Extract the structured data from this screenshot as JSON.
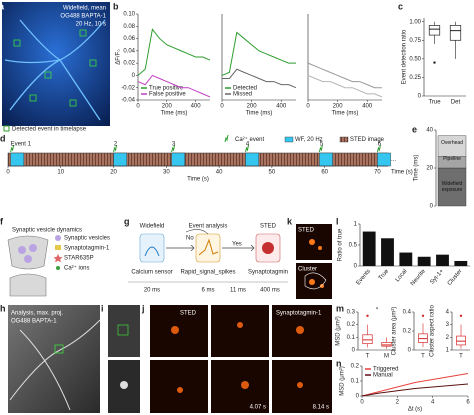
{
  "figure": {
    "a": {
      "label": "a",
      "lines": [
        "Widefield, mean",
        "OG488 BAPTA-1",
        "20 Hz, 10 s"
      ],
      "legend": "Detected event in timelapse"
    },
    "f": {
      "label": "f",
      "title": "Synaptic vesicle dynamics",
      "legend": [
        "Synaptic vesicles",
        "Synaptotagmin-1",
        "STAR635P",
        "Ca²⁺ ions"
      ]
    },
    "g": {
      "label": "g",
      "steps": [
        {
          "title": "Widefield",
          "desc": "Calcium sensor",
          "time": "20 ms"
        },
        {
          "title": "Event analysis",
          "desc": "Rapid_signal_spikes",
          "time": "6 ms"
        },
        {
          "title": "STED",
          "desc": "Synaptotagmin",
          "time": "400 ms"
        }
      ],
      "no": "No",
      "yes": "Yes",
      "gap": "11 ms"
    },
    "h": {
      "label": "h",
      "lines": [
        "Analysis, max. proj.",
        "OG488 BAPTA-1"
      ]
    },
    "i": {
      "label": "i"
    },
    "j": {
      "label": "j",
      "titles": [
        "STED",
        "Synaptotagmin-1"
      ],
      "times": [
        "4.07 s",
        "8.14 s"
      ]
    },
    "k": {
      "label": "k",
      "titles": [
        "STED",
        "Cluster"
      ]
    }
  },
  "chart_data": [
    {
      "type": "line",
      "panel": "b",
      "ylabel": "ΔF/F₀",
      "xlabel": "Time (ms)",
      "x": [
        0,
        50,
        100,
        150,
        200,
        250,
        300,
        350,
        400,
        450,
        500
      ],
      "xlim": [
        0,
        500
      ],
      "xticks": [
        0,
        200,
        400
      ],
      "ylim": [
        -0.04,
        0.1
      ],
      "yticks": [
        -0.04,
        -0.02,
        0,
        0.02,
        0.04,
        0.06,
        0.08,
        {
          "value": 0.1,
          "label": "0.10"
        }
      ],
      "series": [
        {
          "name": "True positive",
          "color": "#2e9e2e",
          "values": [
            0.0,
            0.01,
            0.075,
            0.06,
            0.05,
            0.045,
            0.04,
            0.035,
            0.03,
            0.03,
            0.025
          ]
        },
        {
          "name": "False positive",
          "color": "#c23fc2",
          "values": [
            -0.01,
            -0.015,
            0.0,
            -0.005,
            -0.01,
            -0.015,
            -0.02,
            -0.02,
            -0.025,
            -0.03,
            -0.035
          ]
        }
      ]
    },
    {
      "type": "line",
      "xlabel": "Time (ms)",
      "x": [
        0,
        50,
        100,
        150,
        200,
        250,
        300,
        350,
        400,
        450,
        500
      ],
      "xlim": [
        0,
        500
      ],
      "xticks": [
        0,
        200,
        400
      ],
      "ylim": [
        -0.04,
        0.1
      ],
      "series": [
        {
          "name": "Detected",
          "color": "#2e9e2e",
          "values": [
            0.0,
            0.005,
            0.07,
            0.06,
            0.05,
            0.04,
            0.035,
            0.03,
            0.025,
            0.02,
            0.02
          ]
        },
        {
          "name": "Missed",
          "color": "#666666",
          "values": [
            -0.005,
            -0.005,
            0.01,
            0.005,
            0.0,
            -0.005,
            -0.01,
            -0.01,
            -0.015,
            -0.015,
            -0.02
          ]
        }
      ]
    },
    {
      "type": "line",
      "xlabel": "Time (ms)",
      "x": [
        0,
        50,
        100,
        150,
        200,
        250,
        300,
        350,
        400,
        450,
        500
      ],
      "xlim": [
        0,
        500
      ],
      "xticks": [
        0,
        200,
        400
      ],
      "ylim": [
        -0.04,
        0.1
      ],
      "series": [
        {
          "color": "#9a9a9a",
          "values": [
            0.02,
            0.015,
            0.01,
            0.005,
            0.0,
            -0.005,
            -0.01,
            -0.01,
            -0.015,
            -0.02,
            -0.02
          ]
        },
        {
          "color": "#b5b5b5",
          "values": [
            0.0,
            -0.005,
            -0.01,
            -0.01,
            -0.015,
            -0.02,
            -0.02,
            -0.025,
            -0.03,
            -0.03,
            -0.035
          ]
        }
      ]
    },
    {
      "type": "box",
      "panel": "c",
      "ylabel": "Event detection ratio",
      "categories": [
        "True",
        "Det"
      ],
      "color": "#222222",
      "ylim": [
        0,
        1.05
      ],
      "yticks": [
        0,
        0.25,
        {
          "value": 0.5,
          "label": "0.50"
        },
        0.75,
        {
          "value": 1,
          "label": "1.00"
        }
      ],
      "stats": [
        {
          "low": 0.7,
          "q1": 0.82,
          "median": 0.9,
          "q3": 0.95,
          "high": 1,
          "outliers": [
            0.45
          ]
        },
        {
          "low": 0.5,
          "q1": 0.75,
          "median": 0.88,
          "q3": 0.95,
          "high": 1
        }
      ]
    },
    {
      "type": "timeline",
      "panel": "d",
      "xlabel": "Time (s)",
      "xlim": [
        0,
        72
      ],
      "xticks": [
        0,
        10,
        20,
        30,
        40,
        50,
        60,
        70
      ],
      "events": [
        0.5,
        20,
        31,
        45,
        59,
        70
      ],
      "event_labels": [
        "Event 1",
        "2",
        "3",
        "4",
        "5",
        "6"
      ],
      "wf_duration": 2.5,
      "legend": [
        "Ca²⁺ event",
        "WF, 20 Hz",
        "STED image"
      ],
      "more": "..."
    },
    {
      "type": "stacked",
      "panel": "e",
      "ylabel": "Time (ms)",
      "ylim": [
        0,
        40
      ],
      "yticks": [
        0,
        20,
        40
      ],
      "series": [
        {
          "name": "Widefield exposure",
          "color": "#6e6e6e",
          "values": [
            20
          ]
        },
        {
          "name": "Pipeline",
          "color": "#a5a5a5",
          "values": [
            6
          ]
        },
        {
          "name": "Overhead",
          "color": "#d6d6d6",
          "values": [
            11
          ]
        }
      ]
    },
    {
      "type": "bar",
      "panel": "l",
      "ylabel": "Ratio of true",
      "categories": [
        "Events",
        "True",
        "Local",
        "Neurite",
        "Syt-1+",
        "Cluster"
      ],
      "values": [
        0.82,
        0.66,
        0.32,
        0.22,
        0.27,
        0.12
      ],
      "color": "#111111",
      "ylim": [
        0,
        1
      ],
      "yticks": [
        0,
        0.5,
        1
      ]
    },
    {
      "type": "box",
      "panel": "m",
      "ylabel": "MSD (μm²)",
      "categories": [
        "T",
        "M"
      ],
      "color": "#d62728",
      "ylim": [
        0,
        0.3
      ],
      "yticks": [
        0,
        0.1,
        0.2,
        0.3
      ],
      "annotation": "*",
      "stats": [
        {
          "low": 0.02,
          "q1": 0.05,
          "median": 0.08,
          "q3": 0.12,
          "high": 0.2,
          "outliers": [
            0.27
          ]
        },
        {
          "low": 0.01,
          "q1": 0.03,
          "median": 0.04,
          "q3": 0.06,
          "high": 0.1
        }
      ]
    },
    {
      "type": "box",
      "ylabel": "Cluster area (μm²)",
      "categories": [
        "T"
      ],
      "color": "#d62728",
      "ylim": [
        0,
        0.4
      ],
      "yticks": [
        0,
        0.2,
        0.4
      ],
      "stats": [
        {
          "low": 0.03,
          "q1": 0.08,
          "median": 0.12,
          "q3": 0.17,
          "high": 0.28,
          "outliers": [
            0.36
          ]
        }
      ]
    },
    {
      "type": "box",
      "ylabel": "Cluster aspect ratio",
      "categories": [
        "T"
      ],
      "color": "#d62728",
      "ylim": [
        1,
        4
      ],
      "yticks": [
        1,
        2,
        3,
        4
      ],
      "stats": [
        {
          "low": 1.1,
          "q1": 1.4,
          "median": 1.7,
          "q3": 2.1,
          "high": 3,
          "outliers": [
            3.7
          ]
        }
      ]
    },
    {
      "type": "line",
      "panel": "n",
      "ylabel": "MSD (μm²)",
      "xlabel": "Δt (s)",
      "x": [
        0,
        1,
        2,
        3,
        4,
        5,
        6
      ],
      "xlim": [
        0,
        6
      ],
      "xticks": [
        0,
        2,
        4,
        6
      ],
      "ylim": [
        0,
        0.2
      ],
      "yticks": [
        0,
        0.1,
        0.2
      ],
      "series": [
        {
          "name": "Triggered",
          "color": "#e8413c",
          "values": [
            0,
            0.03,
            0.06,
            0.09,
            0.11,
            0.13,
            0.15
          ]
        },
        {
          "name": "Manual",
          "color": "#5a1010",
          "values": [
            0,
            0.02,
            0.035,
            0.05,
            0.06,
            0.07,
            0.08
          ]
        }
      ]
    }
  ]
}
